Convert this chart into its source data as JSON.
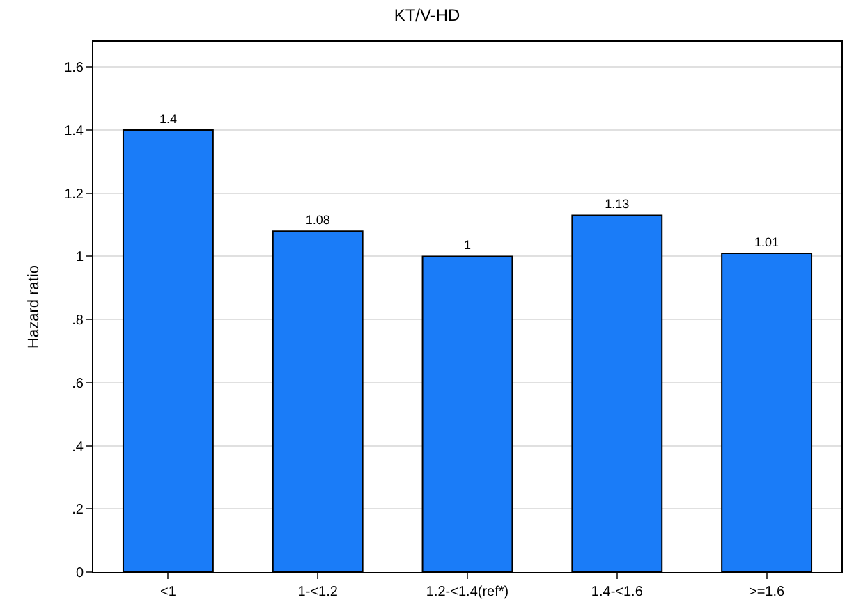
{
  "chart_data": {
    "type": "bar",
    "title": "KT/V-HD",
    "ylabel": "Hazard ratio",
    "categories": [
      "<1",
      "1-<1.2",
      "1.2-<1.4(ref*)",
      "1.4-<1.6",
      ">=1.6"
    ],
    "values": [
      1.4,
      1.08,
      1,
      1.13,
      1.01
    ],
    "color": "#1a7cf8",
    "ylim": [
      0,
      1.68
    ],
    "yticks": [
      0,
      {
        "value": 0.2,
        "label": ".2"
      },
      {
        "value": 0.4,
        "label": ".4"
      },
      {
        "value": 0.6,
        "label": ".6"
      },
      {
        "value": 0.8,
        "label": ".8"
      },
      1,
      1.2,
      1.4,
      1.6
    ],
    "grid": "y",
    "data_labels": true
  }
}
